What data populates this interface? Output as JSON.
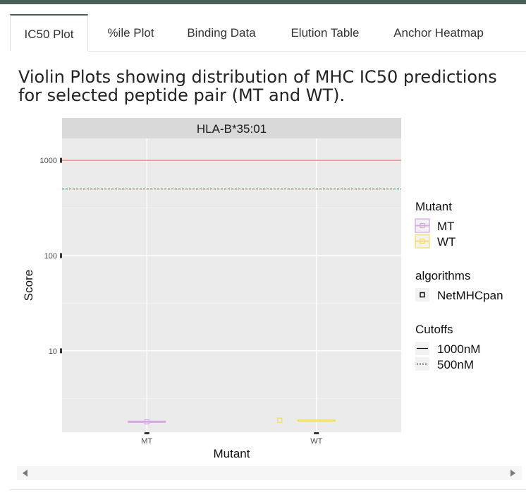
{
  "tabs": [
    {
      "label": "IC50 Plot",
      "active": true
    },
    {
      "label": "%ile Plot",
      "active": false
    },
    {
      "label": "Binding Data",
      "active": false
    },
    {
      "label": "Elution Table",
      "active": false
    },
    {
      "label": "Anchor Heatmap",
      "active": false
    }
  ],
  "heading": "Violin Plots showing distribution of MHC IC50 predictions for selected peptide pair (MT and WT).",
  "chart_data": {
    "type": "scatter",
    "title": "",
    "facet_label": "HLA-B*35:01",
    "xlabel": "Mutant",
    "ylabel": "Score",
    "y_scale": "log10",
    "ylim": [
      1.4,
      1700
    ],
    "y_ticks": [
      10,
      100,
      1000
    ],
    "y_tick_labels": [
      "10",
      "100",
      "1000"
    ],
    "categories": [
      "MT",
      "WT"
    ],
    "grid": true,
    "legend_placement": "right",
    "series": [
      {
        "name": "MT",
        "color": "#d7a9e3",
        "category": "MT",
        "y": 1.8
      },
      {
        "name": "WT",
        "color": "#f3dd6d",
        "category": "WT",
        "y": 1.85
      }
    ],
    "cutoffs": [
      {
        "label": "1000nM",
        "value": 1000,
        "linetype": "solid",
        "color": "#f0695f"
      },
      {
        "label": "500nM",
        "value": 500,
        "linetype": "dashed",
        "color": "#22a84a"
      }
    ],
    "legend": {
      "mutant_title": "Mutant",
      "mutant_items": [
        "MT",
        "WT"
      ],
      "algorithms_title": "algorithms",
      "algorithms_items": [
        "NetMHCpan"
      ],
      "cutoffs_title": "Cutoffs",
      "cutoffs_items": [
        "1000nM",
        "500nM"
      ]
    }
  }
}
